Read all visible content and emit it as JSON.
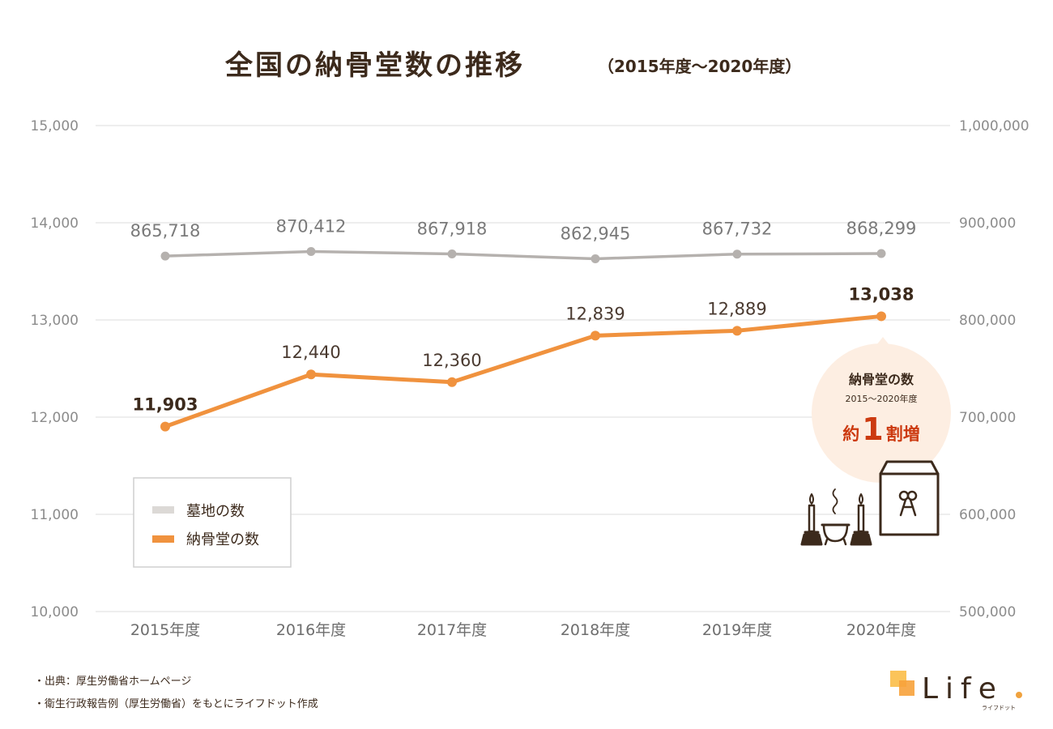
{
  "chart_data": {
    "type": "line",
    "title": "全国の納骨堂数の推移",
    "subtitle": "（2015年度〜2020年度）",
    "categories": [
      "2015年度",
      "2016年度",
      "2017年度",
      "2018年度",
      "2019年度",
      "2020年度"
    ],
    "y_left": {
      "min": 10000,
      "max": 15000,
      "ticks": [
        "10,000",
        "11,000",
        "12,000",
        "13,000",
        "14,000",
        "15,000"
      ]
    },
    "y_right": {
      "min": 500000,
      "max": 1000000,
      "ticks": [
        "500,000",
        "600,000",
        "700,000",
        "800,000",
        "900,000",
        "1,000,000"
      ]
    },
    "series": [
      {
        "name": "墓地の数",
        "axis": "right",
        "values": [
          865718,
          870412,
          867918,
          862945,
          867732,
          868299
        ],
        "labels": [
          "865,718",
          "870,412",
          "867,918",
          "862,945",
          "867,732",
          "868,299"
        ],
        "color": "#b5b1ae"
      },
      {
        "name": "納骨堂の数",
        "axis": "left",
        "values": [
          11903,
          12440,
          12360,
          12839,
          12889,
          13038
        ],
        "labels": [
          "11,903",
          "12,440",
          "12,360",
          "12,839",
          "12,889",
          "13,038"
        ],
        "color": "#f0923e"
      }
    ],
    "legend": [
      "墓地の数",
      "納骨堂の数"
    ],
    "legend_position": "bottom-left",
    "grid": true
  },
  "callout": {
    "line1": "納骨堂の数",
    "line2": "2015〜2020年度",
    "prefix": "約",
    "number": "1",
    "suffix": "割増"
  },
  "source": [
    "・出典：厚生労働省ホームページ",
    "・衛生行政報告例（厚生労働省）をもとにライフドット作成"
  ],
  "logo": {
    "text": "Life",
    "sub": "ライフドット"
  },
  "colors": {
    "grid": "#e3e3e3",
    "grave": "#b5b1ae",
    "nokotsudo": "#f0923e",
    "bubble": "#fdeee2",
    "accent": "#cc3a10",
    "dark": "#3c2a1c"
  }
}
